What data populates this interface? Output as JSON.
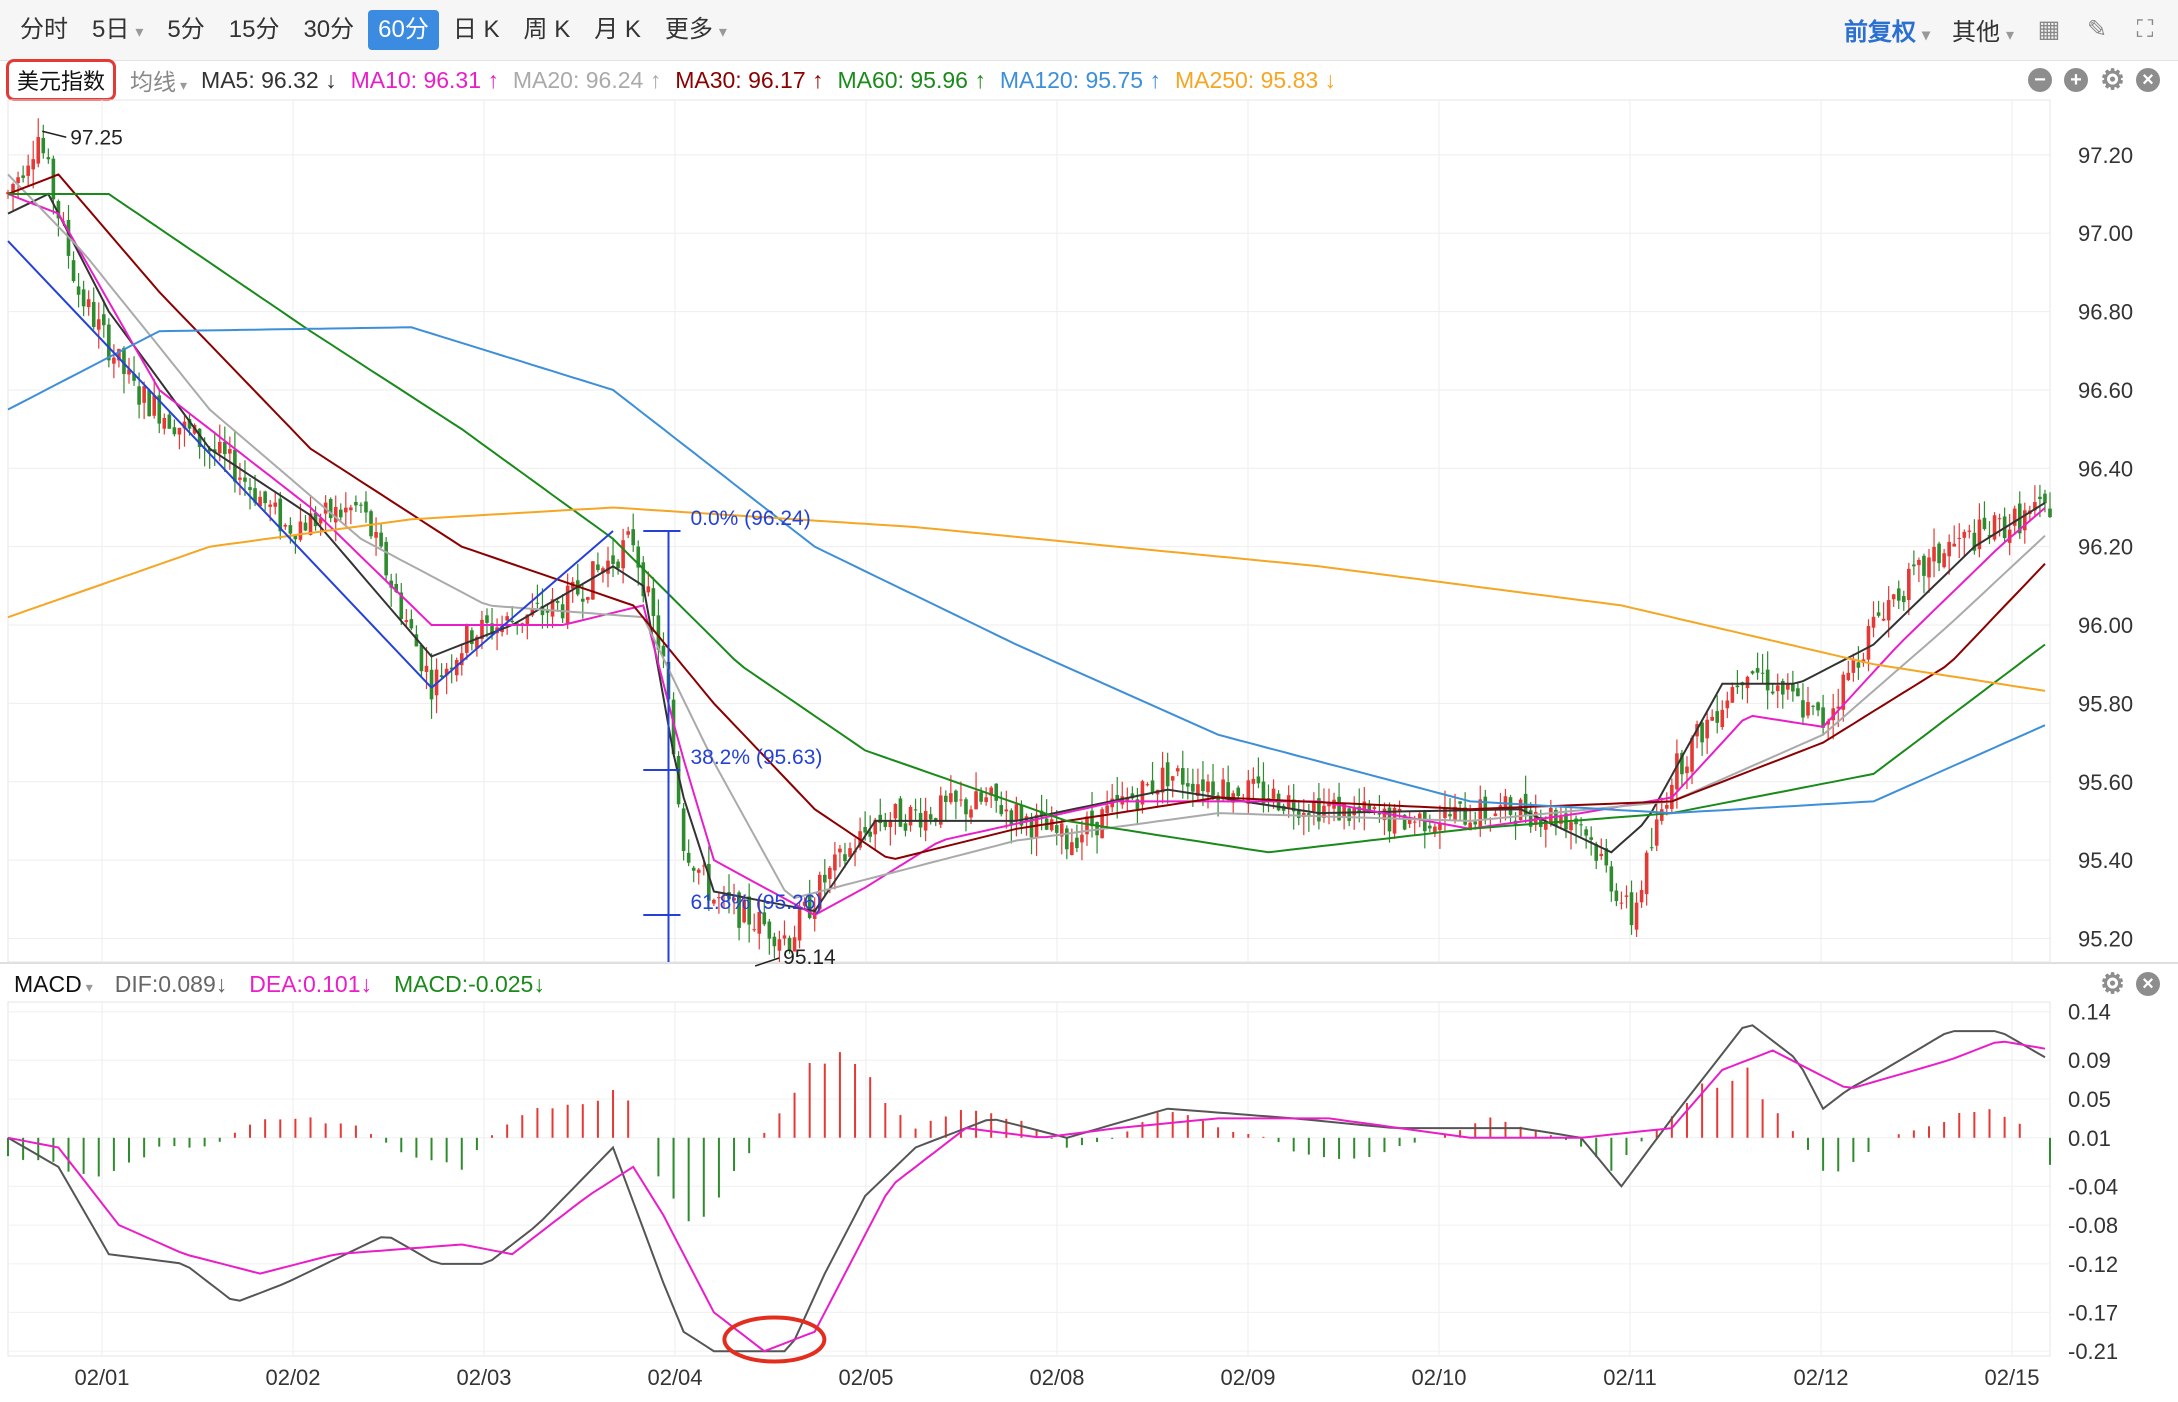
{
  "toolbar": {
    "tabs": [
      "分时",
      "5日",
      "5分",
      "15分",
      "30分",
      "60分",
      "日 K",
      "周 K",
      "月 K",
      "更多"
    ],
    "active_tab": 5,
    "right_items": [
      "前复权",
      "其他"
    ]
  },
  "ma_bar": {
    "index_name": "美元指数",
    "avg_line": "均线",
    "items": [
      {
        "text": "MA5: 96.32 ↓",
        "color": "#333333"
      },
      {
        "text": "MA10: 96.31 ↑",
        "color": "#e91ec8"
      },
      {
        "text": "MA20: 96.24 ↑",
        "color": "#aaaaaa"
      },
      {
        "text": "MA30: 96.17 ↑",
        "color": "#8b0000"
      },
      {
        "text": "MA60: 95.96 ↑",
        "color": "#1a8a1a"
      },
      {
        "text": "MA120: 95.75 ↑",
        "color": "#3d8fd8"
      },
      {
        "text": "MA250: 95.83 ↓",
        "color": "#f5a623"
      }
    ]
  },
  "macd_bar": {
    "name": "MACD",
    "items": [
      {
        "text": "DIF:0.089↓",
        "color": "#666666"
      },
      {
        "text": "DEA:0.101↓",
        "color": "#e91ec8"
      },
      {
        "text": "MACD:-0.025↓",
        "color": "#1a8a1a"
      }
    ]
  },
  "colors": {
    "up": "#e53935",
    "down": "#2e8b2e",
    "ma5": "#333333",
    "ma10": "#e91ec8",
    "ma20": "#aaaaaa",
    "ma30": "#8b0000",
    "ma60": "#1a8a1a",
    "ma120": "#3d8fd8",
    "ma250": "#f5a623",
    "fib": "#2541d8",
    "circle": "#e32d1f"
  },
  "chart_data": [
    {
      "type": "candlestick",
      "x_dates": [
        "02/01",
        "02/02",
        "02/03",
        "02/04",
        "02/05",
        "02/08",
        "02/09",
        "02/10",
        "02/11",
        "02/12",
        "02/15"
      ],
      "ylim": [
        95.14,
        97.34
      ],
      "yticks": [
        95.2,
        95.4,
        95.6,
        95.8,
        96.0,
        96.2,
        96.4,
        96.6,
        96.8,
        97.0,
        97.2
      ],
      "ytick_labels": [
        "95.20",
        "95.40",
        "95.60",
        "95.80",
        "96.00",
        "96.20",
        "96.40",
        "96.60",
        "96.80",
        "97.00",
        "97.20"
      ],
      "grid": true,
      "price_keypoints": [
        [
          0,
          97.1
        ],
        [
          6,
          97.25
        ],
        [
          14,
          96.85
        ],
        [
          25,
          96.6
        ],
        [
          45,
          96.4
        ],
        [
          55,
          96.25
        ],
        [
          70,
          96.3
        ],
        [
          84,
          95.85
        ],
        [
          92,
          95.98
        ],
        [
          110,
          96.05
        ],
        [
          124,
          96.22
        ],
        [
          130,
          95.9
        ],
        [
          134,
          95.45
        ],
        [
          140,
          95.3
        ],
        [
          155,
          95.2
        ],
        [
          162,
          95.35
        ],
        [
          172,
          95.5
        ],
        [
          195,
          95.55
        ],
        [
          210,
          95.45
        ],
        [
          230,
          95.62
        ],
        [
          255,
          95.55
        ],
        [
          275,
          95.5
        ],
        [
          300,
          95.53
        ],
        [
          312,
          95.5
        ],
        [
          322,
          95.25
        ],
        [
          330,
          95.62
        ],
        [
          345,
          95.9
        ],
        [
          360,
          95.75
        ],
        [
          372,
          96.05
        ],
        [
          385,
          96.2
        ],
        [
          405,
          96.3
        ]
      ],
      "moving_averages": [
        {
          "name": "MA5",
          "color_key": "ma5",
          "keypoints": [
            [
              0,
              97.05
            ],
            [
              8,
              97.1
            ],
            [
              20,
              96.8
            ],
            [
              40,
              96.45
            ],
            [
              60,
              96.28
            ],
            [
              84,
              95.92
            ],
            [
              100,
              96.0
            ],
            [
              120,
              96.15
            ],
            [
              126,
              96.1
            ],
            [
              133,
              95.6
            ],
            [
              140,
              95.32
            ],
            [
              160,
              95.27
            ],
            [
              172,
              95.5
            ],
            [
              200,
              95.5
            ],
            [
              230,
              95.58
            ],
            [
              260,
              95.52
            ],
            [
              300,
              95.53
            ],
            [
              318,
              95.42
            ],
            [
              325,
              95.5
            ],
            [
              340,
              95.85
            ],
            [
              355,
              95.85
            ],
            [
              370,
              95.95
            ],
            [
              390,
              96.2
            ],
            [
              405,
              96.32
            ]
          ]
        },
        {
          "name": "MA10",
          "color_key": "ma10",
          "keypoints": [
            [
              0,
              97.1
            ],
            [
              10,
              97.05
            ],
            [
              30,
              96.6
            ],
            [
              60,
              96.3
            ],
            [
              84,
              96.0
            ],
            [
              110,
              96.0
            ],
            [
              126,
              96.05
            ],
            [
              133,
              95.7
            ],
            [
              140,
              95.4
            ],
            [
              160,
              95.26
            ],
            [
              170,
              95.33
            ],
            [
              185,
              95.45
            ],
            [
              220,
              95.55
            ],
            [
              260,
              95.55
            ],
            [
              290,
              95.48
            ],
            [
              312,
              95.52
            ],
            [
              330,
              95.56
            ],
            [
              345,
              95.77
            ],
            [
              360,
              95.74
            ],
            [
              375,
              95.95
            ],
            [
              395,
              96.2
            ],
            [
              405,
              96.31
            ]
          ]
        },
        {
          "name": "MA20",
          "color_key": "ma20",
          "keypoints": [
            [
              0,
              97.15
            ],
            [
              15,
              96.95
            ],
            [
              40,
              96.55
            ],
            [
              70,
              96.22
            ],
            [
              95,
              96.05
            ],
            [
              126,
              96.02
            ],
            [
              140,
              95.65
            ],
            [
              155,
              95.3
            ],
            [
              170,
              95.35
            ],
            [
              200,
              95.45
            ],
            [
              240,
              95.52
            ],
            [
              290,
              95.5
            ],
            [
              330,
              95.55
            ],
            [
              360,
              95.72
            ],
            [
              385,
              96.0
            ],
            [
              405,
              96.24
            ]
          ]
        },
        {
          "name": "MA30",
          "color_key": "ma30",
          "keypoints": [
            [
              0,
              97.1
            ],
            [
              10,
              97.15
            ],
            [
              30,
              96.85
            ],
            [
              60,
              96.45
            ],
            [
              90,
              96.2
            ],
            [
              124,
              96.05
            ],
            [
              140,
              95.8
            ],
            [
              160,
              95.53
            ],
            [
              175,
              95.4
            ],
            [
              200,
              95.48
            ],
            [
              240,
              95.56
            ],
            [
              290,
              95.53
            ],
            [
              330,
              95.55
            ],
            [
              360,
              95.7
            ],
            [
              385,
              95.9
            ],
            [
              405,
              96.17
            ]
          ]
        },
        {
          "name": "MA60",
          "color_key": "ma60",
          "keypoints": [
            [
              0,
              97.1
            ],
            [
              20,
              97.1
            ],
            [
              60,
              96.75
            ],
            [
              90,
              96.5
            ],
            [
              120,
              96.22
            ],
            [
              145,
              95.9
            ],
            [
              170,
              95.68
            ],
            [
              210,
              95.5
            ],
            [
              250,
              95.42
            ],
            [
              290,
              95.48
            ],
            [
              330,
              95.52
            ],
            [
              370,
              95.62
            ],
            [
              405,
              95.96
            ]
          ]
        },
        {
          "name": "MA120",
          "color_key": "ma120",
          "keypoints": [
            [
              0,
              96.55
            ],
            [
              30,
              96.75
            ],
            [
              80,
              96.76
            ],
            [
              120,
              96.6
            ],
            [
              160,
              96.2
            ],
            [
              200,
              95.95
            ],
            [
              240,
              95.72
            ],
            [
              290,
              95.55
            ],
            [
              330,
              95.52
            ],
            [
              370,
              95.55
            ],
            [
              405,
              95.75
            ]
          ]
        },
        {
          "name": "MA250",
          "color_key": "ma250",
          "keypoints": [
            [
              0,
              96.02
            ],
            [
              40,
              96.2
            ],
            [
              80,
              96.27
            ],
            [
              120,
              96.3
            ],
            [
              180,
              96.25
            ],
            [
              260,
              96.15
            ],
            [
              320,
              96.05
            ],
            [
              370,
              95.9
            ],
            [
              405,
              95.83
            ]
          ]
        }
      ],
      "annotations": {
        "high": {
          "text": "97.25",
          "value": 97.25,
          "candle": 6
        },
        "low": {
          "text": "95.14",
          "value": 95.14,
          "candle": 147
        },
        "fib_levels": [
          {
            "text": "0.0% (96.24)",
            "value": 96.24
          },
          {
            "text": "38.2% (95.63)",
            "value": 95.63
          },
          {
            "text": "61.8% (95.26)",
            "value": 95.26
          }
        ],
        "trend_lines": [
          {
            "from": [
              0,
              96.98
            ],
            "to": [
              84,
              95.84
            ]
          },
          {
            "from": [
              84,
              95.84
            ],
            "to": [
              120,
              96.24
            ]
          }
        ]
      }
    },
    {
      "type": "macd",
      "x_dates": [
        "02/01",
        "02/02",
        "02/03",
        "02/04",
        "02/05",
        "02/08",
        "02/09",
        "02/10",
        "02/11",
        "02/12",
        "02/15"
      ],
      "ylim": [
        -0.215,
        0.15
      ],
      "yticks": [
        0.14,
        0.09,
        0.05,
        0.01,
        -0.04,
        -0.08,
        -0.12,
        -0.17,
        -0.21
      ],
      "ytick_labels": [
        "0.14",
        "0.09",
        "0.05",
        "0.01",
        "-0.04",
        "-0.08",
        "-0.12",
        "-0.17",
        "-0.21"
      ],
      "dif_keypoints": [
        [
          0,
          0.01
        ],
        [
          10,
          -0.02
        ],
        [
          20,
          -0.11
        ],
        [
          35,
          -0.12
        ],
        [
          45,
          -0.16
        ],
        [
          55,
          -0.14
        ],
        [
          75,
          -0.09
        ],
        [
          85,
          -0.12
        ],
        [
          95,
          -0.12
        ],
        [
          105,
          -0.08
        ],
        [
          120,
          0.0
        ],
        [
          130,
          -0.14
        ],
        [
          134,
          -0.19
        ],
        [
          140,
          -0.21
        ],
        [
          155,
          -0.21
        ],
        [
          162,
          -0.13
        ],
        [
          170,
          -0.05
        ],
        [
          180,
          0.0
        ],
        [
          195,
          0.03
        ],
        [
          210,
          0.01
        ],
        [
          230,
          0.04
        ],
        [
          255,
          0.03
        ],
        [
          275,
          0.02
        ],
        [
          300,
          0.02
        ],
        [
          312,
          0.01
        ],
        [
          320,
          -0.04
        ],
        [
          330,
          0.03
        ],
        [
          345,
          0.13
        ],
        [
          355,
          0.09
        ],
        [
          360,
          0.04
        ],
        [
          365,
          0.06
        ],
        [
          372,
          0.08
        ],
        [
          385,
          0.12
        ],
        [
          395,
          0.12
        ],
        [
          405,
          0.09
        ]
      ],
      "dea_keypoints": [
        [
          0,
          0.01
        ],
        [
          10,
          0.0
        ],
        [
          22,
          -0.08
        ],
        [
          35,
          -0.11
        ],
        [
          50,
          -0.13
        ],
        [
          65,
          -0.11
        ],
        [
          90,
          -0.1
        ],
        [
          100,
          -0.11
        ],
        [
          115,
          -0.05
        ],
        [
          124,
          -0.02
        ],
        [
          130,
          -0.07
        ],
        [
          140,
          -0.17
        ],
        [
          150,
          -0.21
        ],
        [
          160,
          -0.19
        ],
        [
          175,
          -0.04
        ],
        [
          190,
          0.02
        ],
        [
          205,
          0.01
        ],
        [
          220,
          0.02
        ],
        [
          240,
          0.03
        ],
        [
          262,
          0.03
        ],
        [
          290,
          0.01
        ],
        [
          312,
          0.01
        ],
        [
          330,
          0.02
        ],
        [
          340,
          0.08
        ],
        [
          350,
          0.1
        ],
        [
          365,
          0.06
        ],
        [
          385,
          0.09
        ],
        [
          395,
          0.11
        ],
        [
          405,
          0.101
        ]
      ],
      "hist_keypoints": [
        [
          0,
          -0.02
        ],
        [
          10,
          -0.03
        ],
        [
          20,
          -0.04
        ],
        [
          30,
          -0.01
        ],
        [
          40,
          -0.01
        ],
        [
          50,
          0.02
        ],
        [
          60,
          0.02
        ],
        [
          70,
          0.01
        ],
        [
          80,
          -0.02
        ],
        [
          90,
          -0.03
        ],
        [
          95,
          0.0
        ],
        [
          105,
          0.03
        ],
        [
          115,
          0.04
        ],
        [
          120,
          0.05
        ],
        [
          124,
          0.04
        ],
        [
          126,
          0.0
        ],
        [
          130,
          -0.05
        ],
        [
          135,
          -0.1
        ],
        [
          140,
          -0.07
        ],
        [
          148,
          -0.01
        ],
        [
          152,
          0.02
        ],
        [
          160,
          0.08
        ],
        [
          165,
          0.1
        ],
        [
          170,
          0.06
        ],
        [
          180,
          0.01
        ],
        [
          190,
          0.03
        ],
        [
          200,
          0.02
        ],
        [
          210,
          -0.01
        ],
        [
          220,
          0.0
        ],
        [
          230,
          0.03
        ],
        [
          240,
          0.01
        ],
        [
          250,
          0.0
        ],
        [
          258,
          -0.02
        ],
        [
          270,
          -0.02
        ],
        [
          282,
          0.0
        ],
        [
          295,
          0.02
        ],
        [
          308,
          0.0
        ],
        [
          312,
          -0.01
        ],
        [
          318,
          -0.03
        ],
        [
          325,
          0.0
        ],
        [
          335,
          0.05
        ],
        [
          345,
          0.07
        ],
        [
          350,
          0.03
        ],
        [
          355,
          0.0
        ],
        [
          358,
          -0.02
        ],
        [
          362,
          -0.04
        ],
        [
          368,
          -0.02
        ],
        [
          372,
          0.0
        ],
        [
          380,
          0.01
        ],
        [
          390,
          0.03
        ],
        [
          398,
          0.02
        ],
        [
          404,
          -0.01
        ],
        [
          405,
          -0.025
        ]
      ]
    }
  ]
}
